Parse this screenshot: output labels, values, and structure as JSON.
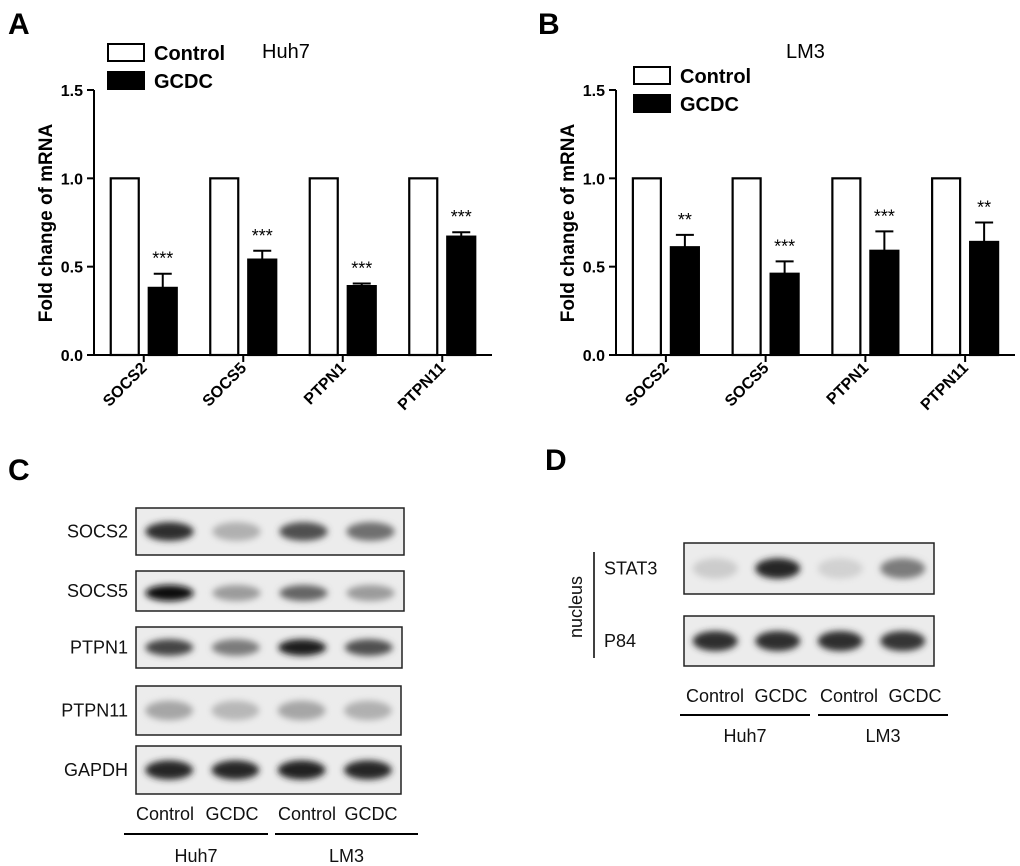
{
  "panels": {
    "A": "A",
    "B": "B",
    "C": "C",
    "D": "D"
  },
  "chart_data": [
    {
      "type": "bar",
      "cell_label": "Huh7",
      "categories": [
        "SOCS2",
        "SOCS5",
        "PTPN1",
        "PTPN11"
      ],
      "series": [
        {
          "name": "Control",
          "values": [
            1.0,
            1.0,
            1.0,
            1.0
          ],
          "errors": [
            0,
            0,
            0,
            0
          ],
          "color": "#ffffff"
        },
        {
          "name": "GCDC",
          "values": [
            0.38,
            0.54,
            0.39,
            0.67
          ],
          "errors": [
            0.08,
            0.05,
            0.015,
            0.025
          ],
          "color": "#000000"
        }
      ],
      "significance": [
        "***",
        "***",
        "***",
        "***"
      ],
      "ylabel": "Fold change of mRNA",
      "ylim": [
        0,
        1.5
      ],
      "yticks": [
        "0.0",
        "0.5",
        "1.0",
        "1.5"
      ],
      "legend": "top-left"
    },
    {
      "type": "bar",
      "cell_label": "LM3",
      "categories": [
        "SOCS2",
        "SOCS5",
        "PTPN1",
        "PTPN11"
      ],
      "series": [
        {
          "name": "Control",
          "values": [
            1.0,
            1.0,
            1.0,
            1.0
          ],
          "errors": [
            0,
            0,
            0,
            0
          ],
          "color": "#ffffff"
        },
        {
          "name": "GCDC",
          "values": [
            0.61,
            0.46,
            0.59,
            0.64
          ],
          "errors": [
            0.07,
            0.07,
            0.11,
            0.11
          ],
          "color": "#000000"
        }
      ],
      "significance": [
        "**",
        "***",
        "***",
        "**"
      ],
      "ylabel": "Fold change of mRNA",
      "ylim": [
        0,
        1.5
      ],
      "yticks": [
        "0.0",
        "0.5",
        "1.0",
        "1.5"
      ],
      "legend": "top-left"
    }
  ],
  "blot_c": {
    "proteins": [
      "SOCS2",
      "SOCS5",
      "PTPN1",
      "PTPN11",
      "GAPDH"
    ],
    "lanes": [
      "Control",
      "GCDC",
      "Control",
      "GCDC"
    ],
    "groups": [
      "Huh7",
      "LM3"
    ],
    "band_intensity": [
      [
        0.85,
        0.25,
        0.7,
        0.55
      ],
      [
        1.0,
        0.35,
        0.6,
        0.35
      ],
      [
        0.75,
        0.5,
        0.95,
        0.7
      ],
      [
        0.3,
        0.22,
        0.3,
        0.25
      ],
      [
        0.9,
        0.9,
        0.92,
        0.9
      ]
    ]
  },
  "blot_d": {
    "side_label": "nucleus",
    "proteins": [
      "STAT3",
      "P84"
    ],
    "lanes": [
      "Control",
      "GCDC",
      "Control",
      "GCDC"
    ],
    "groups": [
      "Huh7",
      "LM3"
    ],
    "band_intensity": [
      [
        0.12,
        0.9,
        0.1,
        0.5
      ],
      [
        0.85,
        0.85,
        0.85,
        0.82
      ]
    ]
  }
}
